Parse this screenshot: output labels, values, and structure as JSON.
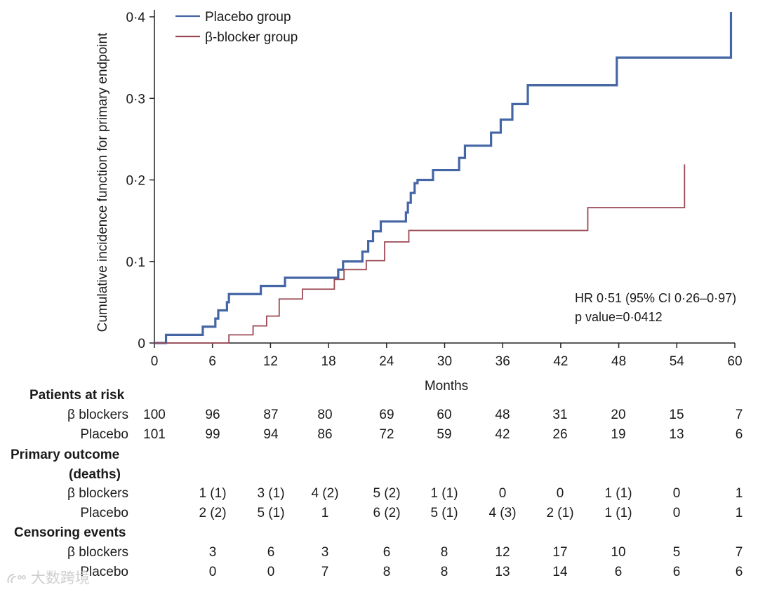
{
  "chart_data": {
    "type": "line",
    "title": "",
    "xlabel": "Months",
    "ylabel": "Cumulative incidence function for primary endpoint",
    "xlim": [
      0,
      60
    ],
    "ylim": [
      0,
      0.4
    ],
    "xticks": [
      "0",
      "6",
      "12",
      "18",
      "24",
      "30",
      "36",
      "42",
      "48",
      "54",
      "60"
    ],
    "xtick_values": [
      0,
      6,
      12,
      18,
      24,
      30,
      36,
      42,
      48,
      54,
      60
    ],
    "yticks": [
      "0",
      "0·1",
      "0·2",
      "0·3",
      "0·4"
    ],
    "ytick_values": [
      0,
      0.1,
      0.2,
      0.3,
      0.4
    ],
    "legend_position": "top-left",
    "series": [
      {
        "name": "Placebo group",
        "color": "#4466a4",
        "points": [
          [
            0,
            0
          ],
          [
            1.2,
            0.01
          ],
          [
            5,
            0.02
          ],
          [
            6.3,
            0.03
          ],
          [
            6.6,
            0.04
          ],
          [
            7.5,
            0.05
          ],
          [
            7.7,
            0.06
          ],
          [
            11,
            0.07
          ],
          [
            13.5,
            0.08
          ],
          [
            19,
            0.09
          ],
          [
            19.5,
            0.1
          ],
          [
            21.5,
            0.112
          ],
          [
            22.1,
            0.125
          ],
          [
            22.6,
            0.137
          ],
          [
            23.4,
            0.149
          ],
          [
            26,
            0.16
          ],
          [
            26.2,
            0.172
          ],
          [
            26.5,
            0.184
          ],
          [
            26.9,
            0.196
          ],
          [
            27.2,
            0.2
          ],
          [
            28.8,
            0.212
          ],
          [
            31.5,
            0.227
          ],
          [
            32.1,
            0.242
          ],
          [
            34.8,
            0.258
          ],
          [
            35.8,
            0.274
          ],
          [
            37,
            0.293
          ],
          [
            38.6,
            0.316
          ],
          [
            47.8,
            0.35
          ],
          [
            59.6,
            0.406
          ]
        ],
        "x_end": 59.6
      },
      {
        "name": "β-blocker group",
        "color": "#9b4a55",
        "points": [
          [
            0,
            0
          ],
          [
            7.7,
            0.01
          ],
          [
            10.2,
            0.021
          ],
          [
            11.6,
            0.033
          ],
          [
            12.9,
            0.054
          ],
          [
            15.3,
            0.066
          ],
          [
            18.6,
            0.078
          ],
          [
            19.6,
            0.09
          ],
          [
            21.9,
            0.101
          ],
          [
            23.8,
            0.124
          ],
          [
            26.3,
            0.138
          ],
          [
            44.8,
            0.166
          ],
          [
            54.8,
            0.219
          ]
        ],
        "x_end": 54.8
      }
    ],
    "annotations": [
      "HR 0·51 (95% CI 0·26–0·97)",
      "p value=0·0412"
    ]
  },
  "table": {
    "columns": [
      "0",
      "6",
      "12",
      "18",
      "24",
      "30",
      "36",
      "42",
      "48",
      "54",
      "60"
    ],
    "patients_at_risk": {
      "heading": "Patients at risk",
      "beta_label": "β blockers",
      "placebo_label": "Placebo",
      "beta": [
        "100",
        "96",
        "87",
        "80",
        "69",
        "60",
        "48",
        "31",
        "20",
        "15",
        "7"
      ],
      "placebo": [
        "101",
        "99",
        "94",
        "86",
        "72",
        "59",
        "42",
        "26",
        "19",
        "13",
        "6"
      ]
    },
    "primary_outcome": {
      "heading_line1": "Primary outcome",
      "heading_line2": "(deaths)",
      "beta_label": "β blockers",
      "placebo_label": "Placebo",
      "beta": [
        "1 (1)",
        "3 (1)",
        "4 (2)",
        "5 (2)",
        "1 (1)",
        "0",
        "0",
        "1 (1)",
        "0",
        "1"
      ],
      "placebo": [
        "2 (2)",
        "5 (1)",
        "1",
        "6 (2)",
        "5 (1)",
        "4 (3)",
        "2 (1)",
        "1 (1)",
        "0",
        "1"
      ]
    },
    "censoring": {
      "heading": "Censoring events",
      "beta_label": "β blockers",
      "placebo_label": "Placebo",
      "beta": [
        "3",
        "6",
        "3",
        "6",
        "8",
        "12",
        "17",
        "10",
        "5",
        "7"
      ],
      "placebo": [
        "0",
        "0",
        "7",
        "8",
        "8",
        "13",
        "14",
        "6",
        "6",
        "6"
      ]
    }
  },
  "watermark": "大数跨境"
}
